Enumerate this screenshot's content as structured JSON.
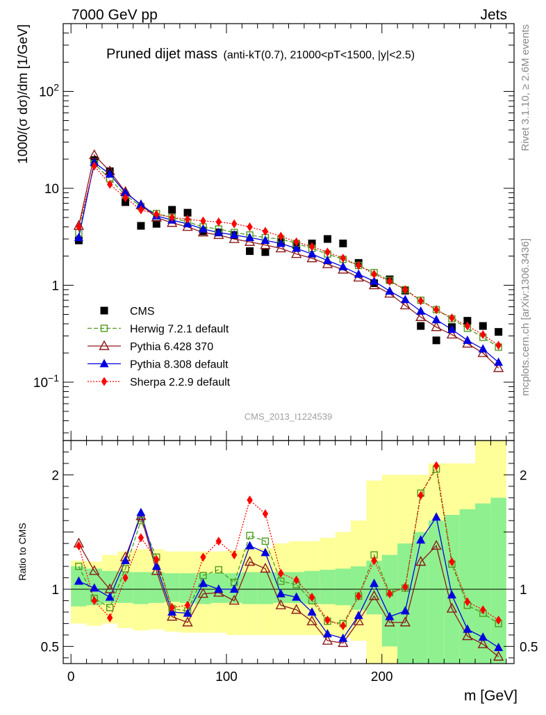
{
  "header": {
    "energy_label": "7000 GeV pp",
    "process_label": "Jets"
  },
  "title": {
    "main": "Pruned dijet mass",
    "sub": "(anti-kT(0.7), 21000<pT<1500, |y|<2.5)"
  },
  "side_labels": {
    "rivet": "Rivet 3.1.10, ≥ 2.6M events",
    "mcplots": "mcplots.cern.ch [arXiv:1306.3436]"
  },
  "watermark": "CMS_2013_I1224539",
  "axes": {
    "main_ylabel": "1000/(σ dσ)/dm [1/GeV]",
    "ratio_ylabel": "Ratio to CMS",
    "xlabel": "m [GeV]"
  },
  "chart_data": [
    {
      "type": "scatter",
      "panel": "main",
      "y_scale": "log",
      "xlim": [
        -5,
        285
      ],
      "ylim": [
        0.025,
        500
      ],
      "x_ticks": [
        "0",
        "100",
        "200"
      ],
      "y_ticks": [
        "10^-1",
        "1",
        "10",
        "10^2"
      ],
      "x": [
        5,
        15,
        25,
        35,
        45,
        55,
        65,
        75,
        85,
        95,
        105,
        115,
        125,
        135,
        145,
        155,
        165,
        175,
        185,
        195,
        205,
        215,
        225,
        235,
        245,
        255,
        265,
        275
      ],
      "series": [
        {
          "name": "CMS",
          "color": "#000000",
          "marker": "filled-square",
          "values": [
            2.9,
            19.5,
            15.0,
            7.2,
            4.1,
            4.3,
            6.0,
            5.6,
            3.6,
            3.5,
            3.3,
            2.25,
            2.2,
            2.8,
            2.6,
            2.7,
            3.0,
            2.7,
            1.7,
            1.05,
            1.15,
            0.88,
            0.38,
            0.27,
            0.37,
            0.43,
            0.38,
            0.33
          ]
        },
        {
          "name": "Herwig 7.2.1 default",
          "color": "#4d9a1f",
          "marker": "open-square",
          "line": "dashed",
          "values": [
            3.5,
            18.0,
            12.5,
            8.5,
            6.5,
            5.5,
            5.0,
            4.5,
            4.0,
            3.8,
            3.5,
            3.3,
            3.1,
            3.0,
            2.7,
            2.4,
            2.1,
            1.85,
            1.6,
            1.35,
            1.12,
            0.9,
            0.7,
            0.56,
            0.45,
            0.36,
            0.29,
            0.23
          ]
        },
        {
          "name": "Pythia 6.428 370",
          "color": "#8b1a1a",
          "marker": "open-triangle",
          "line": "solid",
          "values": [
            4.1,
            22.0,
            15.0,
            9.2,
            6.7,
            5.0,
            4.4,
            4.0,
            3.5,
            3.3,
            3.0,
            2.8,
            2.6,
            2.4,
            2.1,
            1.9,
            1.65,
            1.45,
            1.2,
            1.0,
            0.82,
            0.62,
            0.47,
            0.37,
            0.31,
            0.25,
            0.2,
            0.14
          ]
        },
        {
          "name": "Pythia 8.308 default",
          "color": "#0000e0",
          "marker": "filled-triangle",
          "line": "solid",
          "values": [
            3.1,
            18.5,
            14.0,
            9.0,
            6.8,
            5.2,
            4.7,
            4.3,
            3.8,
            3.5,
            3.3,
            3.1,
            2.9,
            2.7,
            2.4,
            2.1,
            1.8,
            1.55,
            1.3,
            1.1,
            0.87,
            0.71,
            0.54,
            0.44,
            0.35,
            0.27,
            0.22,
            0.16
          ]
        },
        {
          "name": "Sherpa 2.2.9 default",
          "color": "#ff0000",
          "marker": "filled-diamond",
          "line": "dotted",
          "values": [
            4.0,
            17.0,
            11.0,
            8.0,
            6.0,
            5.4,
            5.0,
            4.8,
            4.6,
            4.5,
            4.3,
            4.0,
            3.6,
            3.2,
            2.8,
            2.5,
            2.2,
            1.9,
            1.6,
            1.3,
            1.1,
            0.9,
            0.69,
            0.56,
            0.46,
            0.38,
            0.31,
            0.24
          ]
        }
      ],
      "legend_position": "lower-left"
    },
    {
      "type": "scatter",
      "panel": "ratio",
      "xlim": [
        -5,
        285
      ],
      "ylim": [
        0.35,
        2.3
      ],
      "x_ticks": [
        "0",
        "100",
        "200"
      ],
      "y_ticks": [
        "0.5",
        "1",
        "2"
      ],
      "reference_line": 1,
      "x": [
        5,
        15,
        25,
        35,
        45,
        55,
        65,
        75,
        85,
        95,
        105,
        115,
        125,
        135,
        145,
        155,
        165,
        175,
        185,
        195,
        205,
        215,
        225,
        235,
        245,
        255,
        265,
        275
      ],
      "bands": {
        "inner_color": "#8ff08f",
        "outer_color": "#ffff99",
        "inner_low": [
          0.85,
          0.86,
          0.88,
          0.88,
          0.87,
          0.88,
          0.89,
          0.88,
          0.87,
          0.88,
          0.88,
          0.87,
          0.87,
          0.88,
          0.88,
          0.87,
          0.87,
          0.86,
          0.82,
          0.78,
          0.5,
          0.3,
          0.3,
          0.3,
          0.3,
          0.3,
          0.3,
          0.3
        ],
        "inner_high": [
          1.2,
          1.18,
          1.16,
          1.15,
          1.15,
          1.15,
          1.14,
          1.14,
          1.14,
          1.14,
          1.14,
          1.15,
          1.15,
          1.15,
          1.15,
          1.16,
          1.17,
          1.18,
          1.2,
          1.25,
          1.3,
          1.4,
          1.5,
          1.6,
          1.65,
          1.7,
          1.75,
          1.8
        ],
        "outer_low": [
          0.7,
          0.68,
          0.7,
          0.66,
          0.64,
          0.65,
          0.63,
          0.62,
          0.62,
          0.62,
          0.6,
          0.6,
          0.6,
          0.6,
          0.6,
          0.6,
          0.6,
          0.58,
          0.55,
          0.3,
          0.3,
          0.3,
          0.3,
          0.3,
          0.3,
          0.3,
          0.3,
          0.3
        ],
        "outer_high": [
          1.25,
          1.24,
          1.3,
          1.33,
          1.35,
          1.35,
          1.33,
          1.33,
          1.33,
          1.33,
          1.34,
          1.35,
          1.36,
          1.4,
          1.42,
          1.42,
          1.45,
          1.5,
          1.6,
          1.95,
          2.0,
          2.0,
          2.0,
          2.1,
          2.1,
          2.1,
          2.3,
          2.3
        ]
      },
      "series": [
        {
          "name": "Herwig 7.2.1 default",
          "color": "#4d9a1f",
          "marker": "open-square",
          "line": "dashed",
          "values": [
            1.2,
            0.92,
            0.84,
            1.18,
            1.6,
            1.28,
            0.83,
            0.81,
            1.12,
            1.17,
            1.06,
            1.47,
            1.42,
            1.07,
            1.04,
            0.9,
            0.72,
            0.7,
            0.94,
            1.3,
            0.97,
            1.01,
            1.84,
            2.05,
            1.22,
            0.86,
            0.79,
            0.7
          ]
        },
        {
          "name": "Pythia 6.428 370",
          "color": "#8b1a1a",
          "marker": "open-triangle",
          "line": "solid",
          "values": [
            1.4,
            1.16,
            1.0,
            1.28,
            1.64,
            1.16,
            0.76,
            0.71,
            0.96,
            0.97,
            0.9,
            1.24,
            1.18,
            0.86,
            0.82,
            0.72,
            0.55,
            0.53,
            0.72,
            0.94,
            0.71,
            0.71,
            1.24,
            1.38,
            0.83,
            0.59,
            0.52,
            0.41
          ]
        },
        {
          "name": "Pythia 8.308 default",
          "color": "#0000e0",
          "marker": "filled-triangle",
          "line": "solid",
          "values": [
            1.07,
            1.01,
            0.93,
            1.25,
            1.67,
            1.2,
            0.8,
            0.79,
            1.05,
            1.0,
            1.0,
            1.38,
            1.32,
            0.96,
            0.93,
            0.8,
            0.61,
            0.57,
            0.77,
            1.05,
            0.76,
            0.81,
            1.43,
            1.63,
            0.95,
            0.65,
            0.58,
            0.49
          ]
        },
        {
          "name": "Sherpa 2.2.9 default",
          "color": "#ff0000",
          "marker": "filled-diamond",
          "line": "dotted",
          "values": [
            1.38,
            0.9,
            0.75,
            1.1,
            1.45,
            1.26,
            0.84,
            0.86,
            1.28,
            1.42,
            1.3,
            1.78,
            1.66,
            1.14,
            1.08,
            0.93,
            0.73,
            0.68,
            0.94,
            1.25,
            0.96,
            1.02,
            1.82,
            2.08,
            1.24,
            0.89,
            0.82,
            0.73
          ]
        }
      ]
    }
  ]
}
